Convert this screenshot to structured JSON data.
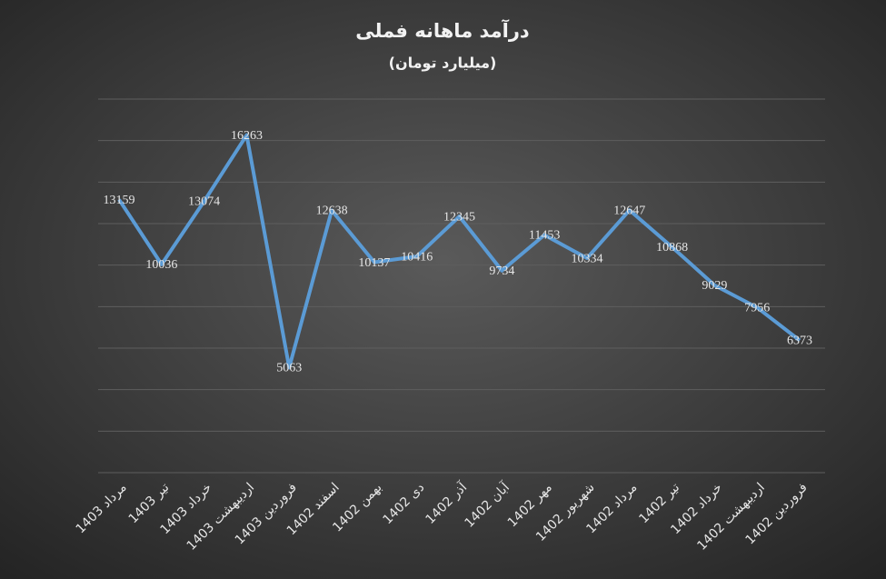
{
  "chart_data": {
    "type": "line",
    "title": "درآمد ماهانه فملی",
    "subtitle": "(میلیارد تومان)",
    "categories": [
      "مرداد 1403",
      "تیر 1403",
      "خرداد 1403",
      "اردیبهشت 1403",
      "فروردین 1403",
      "اسفند 1402",
      "بهمن 1402",
      "دی 1402",
      "آذر 1402",
      "آبان 1402",
      "مهر 1402",
      "شهریور 1402",
      "مرداد 1402",
      "تیر 1402",
      "خرداد 1402",
      "اردیبهشت 1402",
      "فروردین 1402"
    ],
    "values": [
      13159,
      10036,
      13074,
      16263,
      5063,
      12638,
      10137,
      10416,
      12345,
      9734,
      11453,
      10334,
      12647,
      10868,
      9029,
      7956,
      6373
    ],
    "color": "#5b9bd5",
    "ylim": [
      0,
      18000
    ],
    "yticks": [
      0,
      2000,
      4000,
      6000,
      8000,
      10000,
      12000,
      14000,
      16000,
      18000
    ],
    "grid": true
  }
}
